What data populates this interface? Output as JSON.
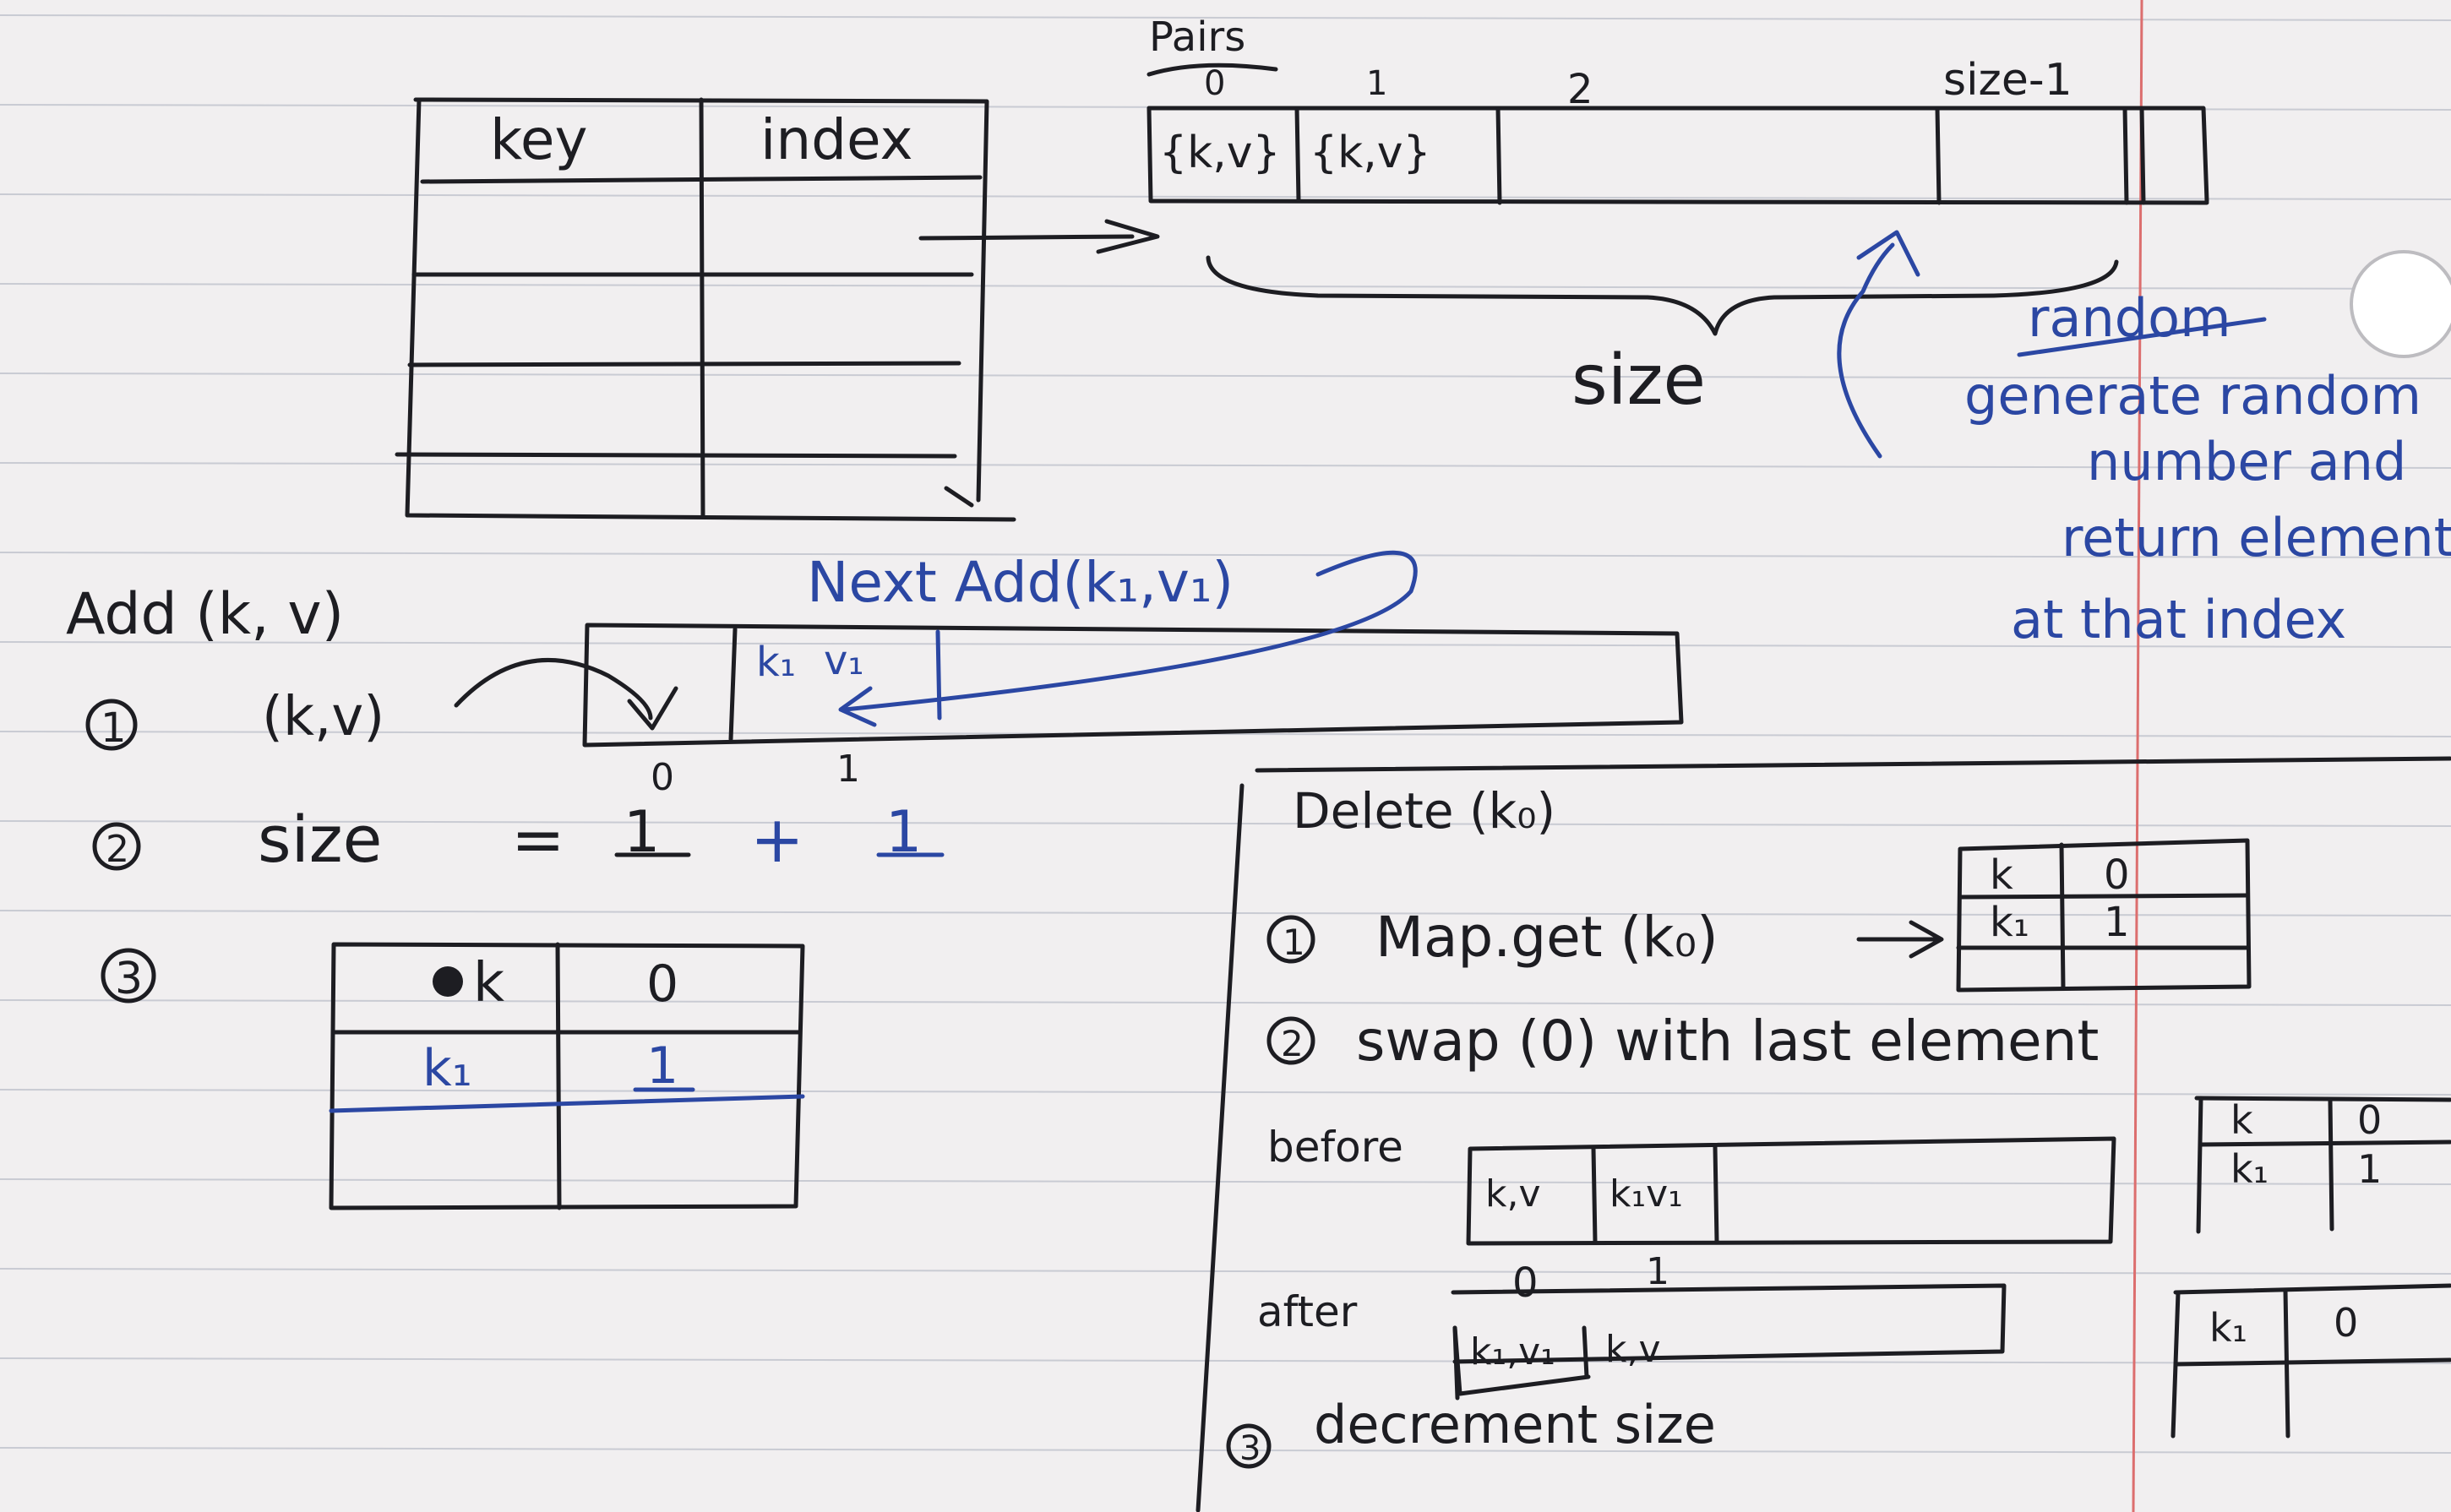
{
  "paper": {
    "rule_color": "#c9cbd3",
    "margin_color": "#dc6e6e",
    "ink_color": "#1d1d22",
    "blue_ink_color": "#2b47a3"
  },
  "map_table": {
    "headers": [
      "key",
      "index"
    ]
  },
  "pairs_array": {
    "label": "Pairs",
    "indices": [
      "0",
      "1",
      "2",
      "size-1"
    ],
    "cells": [
      "{k,v}",
      "{k,v}"
    ],
    "size_label": "size"
  },
  "random_note": {
    "title": "random",
    "lines": [
      "generate random",
      "number and",
      "return element",
      "at that index"
    ]
  },
  "add_section": {
    "title": "Add (k, v)",
    "step1": {
      "number": "1",
      "text": "(k,v)",
      "cell_k1": "k₁",
      "cell_v1": "v₁",
      "index0": "0",
      "index1": "1",
      "next_label": "Next Add(k₁,v₁)"
    },
    "step2": {
      "number": "2",
      "text": "size",
      "equals": "=",
      "value1": "1",
      "plus": "+",
      "value2": "1"
    },
    "step3": {
      "number": "3",
      "rows": [
        {
          "key": "k",
          "index": "0"
        },
        {
          "key": "k₁",
          "index": "1"
        },
        {
          "key": "",
          "index": ""
        }
      ]
    }
  },
  "delete_section": {
    "title": "Delete (k₀)",
    "step1": {
      "number": "1",
      "text": "Map.get (k₀)",
      "rows": [
        {
          "key": "k",
          "index": "0"
        },
        {
          "key": "k₁",
          "index": "1"
        }
      ]
    },
    "step2": {
      "number": "2",
      "text": "swap (0) with last element"
    },
    "before": {
      "label": "before",
      "cells": [
        "k,v",
        "k₁v₁"
      ],
      "indices": [
        "0",
        "1"
      ],
      "table_rows": [
        {
          "key": "k",
          "index": "0"
        },
        {
          "key": "k₁",
          "index": "1"
        }
      ]
    },
    "after": {
      "label": "after",
      "cells": [
        "k₁,v₁",
        "k,v"
      ],
      "table_rows": [
        {
          "key": "k₁",
          "index": "0"
        }
      ]
    },
    "step3": {
      "number": "3",
      "text": "decrement size"
    }
  }
}
